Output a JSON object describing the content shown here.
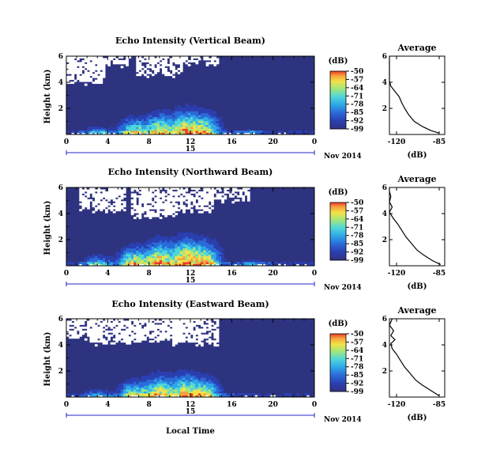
{
  "colors": {
    "background_dark": "#2e3380",
    "colormap": [
      "#2e3380",
      "#2b3fb0",
      "#2a6bd8",
      "#2fa6e8",
      "#4fd7d8",
      "#a5e67a",
      "#f3e24a",
      "#f6a33a",
      "#ee3a2b"
    ],
    "axis_line": "#2424c8",
    "missing_data": "#ffffff"
  },
  "date_label": "Nov 2014",
  "xlabel": "Local Time",
  "chart_data": [
    {
      "type": "heatmap",
      "title": "Echo Intensity (Vertical Beam)",
      "ylabel": "Height (km)",
      "yticks": [
        "2",
        "4",
        "6"
      ],
      "xticks": [
        "0",
        "4",
        "8",
        "12",
        "16",
        "20",
        "0"
      ],
      "xlim": [
        0,
        24
      ],
      "ylim": [
        0,
        6
      ],
      "day_label": "15",
      "colorbar": {
        "unit": "(dB)",
        "ticks": [
          "-50",
          "-57",
          "-64",
          "-71",
          "-78",
          "-85",
          "-92",
          "-99"
        ],
        "range": [
          -99,
          -50
        ]
      },
      "profile": {
        "title": "Average",
        "xlabel": "(dB)",
        "xticks": [
          "-120",
          "-85"
        ],
        "yticks": [
          "2",
          "4",
          "6"
        ],
        "xlim": [
          -120,
          -80
        ],
        "ylim": [
          0,
          6
        ],
        "points": [
          [
            -84,
            0.1
          ],
          [
            -90,
            0.3
          ],
          [
            -96,
            0.6
          ],
          [
            -102,
            1.0
          ],
          [
            -106,
            1.5
          ],
          [
            -109,
            2.0
          ],
          [
            -111,
            2.4
          ],
          [
            -113,
            2.9
          ],
          [
            -116,
            3.3
          ],
          [
            -119,
            3.7
          ],
          [
            -121,
            4.1
          ],
          [
            -120,
            4.6
          ],
          [
            -122,
            5.0
          ],
          [
            -121,
            5.5
          ],
          [
            -122,
            6.0
          ]
        ]
      },
      "echo_core": [
        [
          6.5,
          1.2,
          0.9
        ],
        [
          9.0,
          1.5,
          1.0
        ],
        [
          11.5,
          1.8,
          1.0
        ],
        [
          13.5,
          1.6,
          0.9
        ],
        [
          3.0,
          0.6,
          0.5
        ],
        [
          17.5,
          0.4,
          0.4
        ]
      ],
      "missing_top": [
        [
          4.0,
          5.5
        ],
        [
          9.0,
          4.8
        ],
        [
          12.5,
          5.6
        ],
        [
          1.5,
          4.2
        ]
      ],
      "seed": 11
    },
    {
      "type": "heatmap",
      "title": "Echo Intensity (Northward Beam)",
      "ylabel": "Height (km)",
      "yticks": [
        "2",
        "4",
        "6"
      ],
      "xticks": [
        "0",
        "4",
        "8",
        "12",
        "16",
        "20",
        "0"
      ],
      "xlim": [
        0,
        24
      ],
      "ylim": [
        0,
        6
      ],
      "day_label": "15",
      "colorbar": {
        "unit": "(dB)",
        "ticks": [
          "-50",
          "-57",
          "-64",
          "-71",
          "-78",
          "-85",
          "-92",
          "-99"
        ],
        "range": [
          -99,
          -50
        ]
      },
      "profile": {
        "title": "Average",
        "xlabel": "(dB)",
        "xticks": [
          "-120",
          "-85"
        ],
        "yticks": [
          "2",
          "4",
          "6"
        ],
        "xlim": [
          -120,
          -80
        ],
        "ylim": [
          0,
          6
        ],
        "points": [
          [
            -83,
            0.1
          ],
          [
            -89,
            0.4
          ],
          [
            -95,
            0.8
          ],
          [
            -100,
            1.2
          ],
          [
            -104,
            1.7
          ],
          [
            -108,
            2.2
          ],
          [
            -111,
            2.7
          ],
          [
            -114,
            3.2
          ],
          [
            -117,
            3.6
          ],
          [
            -120,
            4.1
          ],
          [
            -118,
            4.5
          ],
          [
            -121,
            4.9
          ],
          [
            -119,
            5.3
          ],
          [
            -121,
            5.7
          ],
          [
            -120,
            6.0
          ]
        ]
      },
      "echo_core": [
        [
          6.5,
          1.4,
          1.0
        ],
        [
          9.0,
          1.8,
          1.1
        ],
        [
          11.5,
          2.0,
          1.1
        ],
        [
          13.5,
          1.8,
          1.0
        ],
        [
          3.0,
          0.8,
          0.6
        ],
        [
          18.0,
          0.5,
          0.4
        ]
      ],
      "missing_top": [
        [
          3.5,
          4.5
        ],
        [
          8.5,
          4.0
        ],
        [
          12.0,
          4.4
        ],
        [
          15.5,
          5.2
        ]
      ],
      "seed": 29
    },
    {
      "type": "heatmap",
      "title": "Echo Intensity (Eastward Beam)",
      "ylabel": "Height (km)",
      "yticks": [
        "2",
        "4",
        "6"
      ],
      "xticks": [
        "0",
        "4",
        "8",
        "12",
        "16",
        "20",
        "0"
      ],
      "xlim": [
        0,
        24
      ],
      "ylim": [
        0,
        6
      ],
      "day_label": "15",
      "colorbar": {
        "unit": "(dB)",
        "ticks": [
          "-50",
          "-57",
          "-64",
          "-71",
          "-78",
          "-85",
          "-92",
          "-99"
        ],
        "range": [
          -99,
          -50
        ]
      },
      "profile": {
        "title": "Average",
        "xlabel": "(dB)",
        "xticks": [
          "-120",
          "-85"
        ],
        "yticks": [
          "2",
          "4",
          "6"
        ],
        "xlim": [
          -120,
          -80
        ],
        "ylim": [
          0,
          6
        ],
        "points": [
          [
            -84,
            0.1
          ],
          [
            -90,
            0.5
          ],
          [
            -96,
            0.9
          ],
          [
            -101,
            1.3
          ],
          [
            -105,
            1.8
          ],
          [
            -109,
            2.3
          ],
          [
            -112,
            2.8
          ],
          [
            -115,
            3.3
          ],
          [
            -118,
            3.7
          ],
          [
            -119,
            4.1
          ],
          [
            -116,
            4.4
          ],
          [
            -119,
            4.7
          ],
          [
            -117,
            5.1
          ],
          [
            -120,
            5.5
          ],
          [
            -118,
            6.0
          ]
        ]
      },
      "echo_core": [
        [
          6.5,
          1.2,
          0.9
        ],
        [
          9.0,
          1.6,
          1.0
        ],
        [
          11.5,
          1.7,
          1.0
        ],
        [
          13.5,
          1.4,
          0.9
        ],
        [
          3.0,
          0.6,
          0.5
        ]
      ],
      "missing_top": [
        [
          4.5,
          4.3
        ],
        [
          9.0,
          4.5
        ],
        [
          12.5,
          4.3
        ],
        [
          1.0,
          4.8
        ]
      ],
      "seed": 47
    }
  ]
}
